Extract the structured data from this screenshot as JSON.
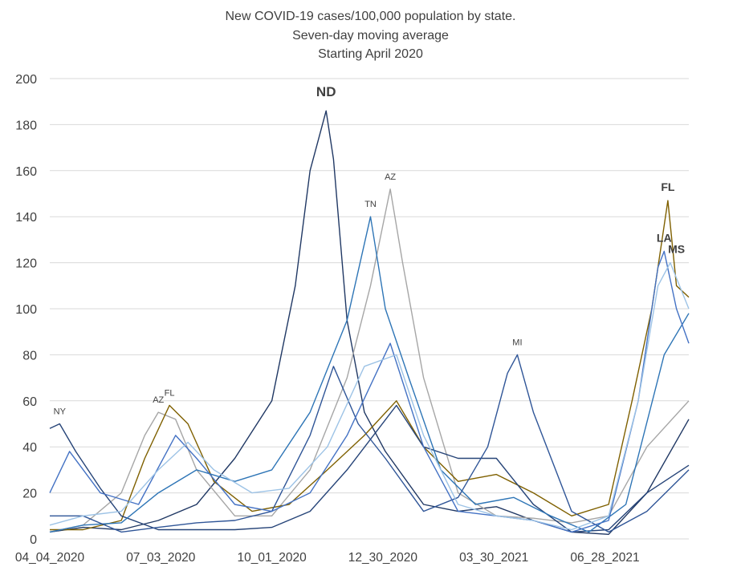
{
  "chart_data": {
    "type": "line",
    "title": [
      "New COVID-19 cases/100,000 population by state.",
      "Seven-day moving average",
      "Starting April 2020"
    ],
    "ylim": [
      0,
      200
    ],
    "y_ticks": [
      0,
      20,
      40,
      60,
      80,
      100,
      120,
      140,
      160,
      180,
      200
    ],
    "x_range": [
      "2020-04-04",
      "2021-09-04"
    ],
    "x_ticks": [
      {
        "date": "2020-04-04",
        "label": "04_04_2020"
      },
      {
        "date": "2020-07-03",
        "label": "07_03_2020"
      },
      {
        "date": "2020-10-01",
        "label": "10_01_2020"
      },
      {
        "date": "2020-12-30",
        "label": "12_30_2020"
      },
      {
        "date": "2021-03-30",
        "label": "03_30_2021"
      },
      {
        "date": "2021-06-28",
        "label": "06_28_2021"
      }
    ],
    "grid": true,
    "legend": "none",
    "series": [
      {
        "name": "ND",
        "color": "#203864",
        "points": [
          [
            "2020-04-04",
            3
          ],
          [
            "2020-05-01",
            5
          ],
          [
            "2020-06-01",
            4
          ],
          [
            "2020-07-01",
            8
          ],
          [
            "2020-08-01",
            15
          ],
          [
            "2020-09-01",
            35
          ],
          [
            "2020-10-01",
            60
          ],
          [
            "2020-10-20",
            110
          ],
          [
            "2020-11-01",
            160
          ],
          [
            "2020-11-10",
            178
          ],
          [
            "2020-11-14",
            186
          ],
          [
            "2020-11-20",
            165
          ],
          [
            "2020-12-01",
            95
          ],
          [
            "2020-12-15",
            55
          ],
          [
            "2021-01-01",
            38
          ],
          [
            "2021-02-01",
            15
          ],
          [
            "2021-03-01",
            12
          ],
          [
            "2021-04-01",
            14
          ],
          [
            "2021-05-01",
            8
          ],
          [
            "2021-06-01",
            3
          ],
          [
            "2021-07-01",
            2
          ],
          [
            "2021-08-01",
            20
          ],
          [
            "2021-09-04",
            52
          ]
        ]
      },
      {
        "name": "AZ",
        "color": "#a6a6a6",
        "points": [
          [
            "2020-04-04",
            3
          ],
          [
            "2020-05-01",
            6
          ],
          [
            "2020-06-01",
            20
          ],
          [
            "2020-06-20",
            45
          ],
          [
            "2020-07-01",
            55
          ],
          [
            "2020-07-15",
            52
          ],
          [
            "2020-08-01",
            30
          ],
          [
            "2020-09-01",
            10
          ],
          [
            "2020-10-01",
            10
          ],
          [
            "2020-11-01",
            30
          ],
          [
            "2020-12-01",
            70
          ],
          [
            "2020-12-20",
            110
          ],
          [
            "2021-01-05",
            152
          ],
          [
            "2021-01-15",
            120
          ],
          [
            "2021-02-01",
            70
          ],
          [
            "2021-03-01",
            20
          ],
          [
            "2021-04-01",
            10
          ],
          [
            "2021-05-01",
            9
          ],
          [
            "2021-06-01",
            7
          ],
          [
            "2021-07-01",
            10
          ],
          [
            "2021-08-01",
            40
          ],
          [
            "2021-09-04",
            60
          ]
        ]
      },
      {
        "name": "FL",
        "color": "#7f6000",
        "points": [
          [
            "2020-04-04",
            4
          ],
          [
            "2020-05-01",
            4
          ],
          [
            "2020-06-01",
            8
          ],
          [
            "2020-06-20",
            35
          ],
          [
            "2020-07-10",
            58
          ],
          [
            "2020-07-25",
            50
          ],
          [
            "2020-08-15",
            25
          ],
          [
            "2020-09-15",
            12
          ],
          [
            "2020-10-15",
            15
          ],
          [
            "2020-11-15",
            30
          ],
          [
            "2020-12-15",
            45
          ],
          [
            "2021-01-10",
            60
          ],
          [
            "2021-02-01",
            40
          ],
          [
            "2021-03-01",
            25
          ],
          [
            "2021-04-01",
            28
          ],
          [
            "2021-05-01",
            20
          ],
          [
            "2021-06-01",
            10
          ],
          [
            "2021-07-01",
            15
          ],
          [
            "2021-07-20",
            60
          ],
          [
            "2021-08-05",
            100
          ],
          [
            "2021-08-18",
            147
          ],
          [
            "2021-08-25",
            110
          ],
          [
            "2021-09-04",
            105
          ]
        ]
      },
      {
        "name": "NY",
        "color": "#264478",
        "points": [
          [
            "2020-04-04",
            48
          ],
          [
            "2020-04-12",
            50
          ],
          [
            "2020-04-25",
            38
          ],
          [
            "2020-05-15",
            22
          ],
          [
            "2020-06-01",
            10
          ],
          [
            "2020-07-01",
            4
          ],
          [
            "2020-08-01",
            4
          ],
          [
            "2020-09-01",
            4
          ],
          [
            "2020-10-01",
            5
          ],
          [
            "2020-11-01",
            12
          ],
          [
            "2020-12-01",
            30
          ],
          [
            "2021-01-10",
            58
          ],
          [
            "2021-02-01",
            40
          ],
          [
            "2021-03-01",
            35
          ],
          [
            "2021-04-01",
            35
          ],
          [
            "2021-05-01",
            15
          ],
          [
            "2021-06-01",
            3
          ],
          [
            "2021-07-01",
            4
          ],
          [
            "2021-08-01",
            20
          ],
          [
            "2021-09-04",
            32
          ]
        ]
      },
      {
        "name": "TN",
        "color": "#2e75b6",
        "points": [
          [
            "2020-04-04",
            3
          ],
          [
            "2020-05-01",
            6
          ],
          [
            "2020-06-01",
            7
          ],
          [
            "2020-07-01",
            20
          ],
          [
            "2020-08-01",
            30
          ],
          [
            "2020-09-01",
            25
          ],
          [
            "2020-10-01",
            30
          ],
          [
            "2020-11-01",
            55
          ],
          [
            "2020-12-01",
            95
          ],
          [
            "2020-12-20",
            140
          ],
          [
            "2021-01-01",
            100
          ],
          [
            "2021-01-20",
            70
          ],
          [
            "2021-02-15",
            30
          ],
          [
            "2021-03-15",
            15
          ],
          [
            "2021-04-15",
            18
          ],
          [
            "2021-05-15",
            10
          ],
          [
            "2021-06-15",
            3
          ],
          [
            "2021-07-15",
            15
          ],
          [
            "2021-08-15",
            80
          ],
          [
            "2021-09-04",
            98
          ]
        ]
      },
      {
        "name": "MI",
        "color": "#2f5597",
        "points": [
          [
            "2020-04-04",
            10
          ],
          [
            "2020-05-01",
            10
          ],
          [
            "2020-06-01",
            3
          ],
          [
            "2020-07-01",
            5
          ],
          [
            "2020-08-01",
            7
          ],
          [
            "2020-09-01",
            8
          ],
          [
            "2020-10-01",
            12
          ],
          [
            "2020-11-01",
            45
          ],
          [
            "2020-11-20",
            75
          ],
          [
            "2020-12-10",
            50
          ],
          [
            "2021-01-01",
            35
          ],
          [
            "2021-02-01",
            12
          ],
          [
            "2021-03-01",
            18
          ],
          [
            "2021-03-25",
            40
          ],
          [
            "2021-04-10",
            72
          ],
          [
            "2021-04-18",
            80
          ],
          [
            "2021-05-01",
            55
          ],
          [
            "2021-06-01",
            12
          ],
          [
            "2021-07-01",
            3
          ],
          [
            "2021-08-01",
            12
          ],
          [
            "2021-09-04",
            30
          ]
        ]
      },
      {
        "name": "LA",
        "color": "#4472c4",
        "points": [
          [
            "2020-04-04",
            20
          ],
          [
            "2020-04-20",
            38
          ],
          [
            "2020-05-15",
            20
          ],
          [
            "2020-06-15",
            15
          ],
          [
            "2020-07-15",
            45
          ],
          [
            "2020-08-01",
            35
          ],
          [
            "2020-09-01",
            15
          ],
          [
            "2020-10-01",
            12
          ],
          [
            "2020-11-01",
            20
          ],
          [
            "2020-12-01",
            45
          ],
          [
            "2021-01-05",
            85
          ],
          [
            "2021-02-01",
            40
          ],
          [
            "2021-03-01",
            12
          ],
          [
            "2021-04-01",
            10
          ],
          [
            "2021-05-01",
            8
          ],
          [
            "2021-06-01",
            3
          ],
          [
            "2021-07-01",
            8
          ],
          [
            "2021-07-25",
            60
          ],
          [
            "2021-08-10",
            118
          ],
          [
            "2021-08-15",
            125
          ],
          [
            "2021-08-25",
            100
          ],
          [
            "2021-09-04",
            85
          ]
        ]
      },
      {
        "name": "MS",
        "color": "#9dc3e6",
        "points": [
          [
            "2020-04-04",
            6
          ],
          [
            "2020-05-01",
            10
          ],
          [
            "2020-06-01",
            12
          ],
          [
            "2020-07-01",
            30
          ],
          [
            "2020-07-25",
            42
          ],
          [
            "2020-08-15",
            30
          ],
          [
            "2020-09-15",
            20
          ],
          [
            "2020-10-15",
            22
          ],
          [
            "2020-11-15",
            40
          ],
          [
            "2020-12-15",
            75
          ],
          [
            "2021-01-10",
            80
          ],
          [
            "2021-02-01",
            45
          ],
          [
            "2021-03-01",
            15
          ],
          [
            "2021-04-01",
            10
          ],
          [
            "2021-05-01",
            8
          ],
          [
            "2021-06-01",
            4
          ],
          [
            "2021-07-01",
            10
          ],
          [
            "2021-07-25",
            60
          ],
          [
            "2021-08-10",
            110
          ],
          [
            "2021-08-20",
            120
          ],
          [
            "2021-09-04",
            100
          ]
        ]
      }
    ],
    "annotations": [
      {
        "text": "ND",
        "date": "2020-11-14",
        "value": 186,
        "bold": true,
        "size": "large"
      },
      {
        "text": "AZ",
        "date": "2021-01-05",
        "value": 152,
        "bold": false,
        "size": "small"
      },
      {
        "text": "TN",
        "date": "2020-12-20",
        "value": 140,
        "bold": false,
        "size": "small"
      },
      {
        "text": "MI",
        "date": "2021-04-18",
        "value": 80,
        "bold": false,
        "size": "small"
      },
      {
        "text": "NY",
        "date": "2020-04-12",
        "value": 50,
        "bold": false,
        "size": "small"
      },
      {
        "text": "AZ",
        "date": "2020-07-01",
        "value": 55,
        "bold": false,
        "size": "small"
      },
      {
        "text": "FL",
        "date": "2020-07-10",
        "value": 58,
        "bold": false,
        "size": "small"
      },
      {
        "text": "LA",
        "date": "2021-08-15",
        "value": 125,
        "bold": true,
        "size": "medium"
      },
      {
        "text": "FL",
        "date": "2021-08-18",
        "value": 147,
        "bold": true,
        "size": "medium"
      },
      {
        "text": "MS",
        "date": "2021-08-25",
        "value": 120,
        "bold": true,
        "size": "medium"
      }
    ]
  }
}
